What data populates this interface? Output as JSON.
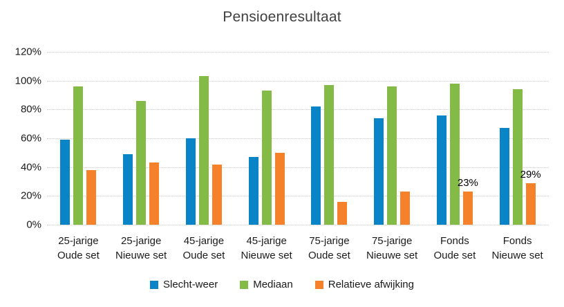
{
  "title": "Pensioenresultaat",
  "colors": {
    "slecht_weer": "#0984c6",
    "mediaan": "#84bb47",
    "relatieve_afwijking": "#f5822a",
    "gridline": "#c9c9c9",
    "title_text": "#3f3f3f",
    "axis_text": "#1a1a1a"
  },
  "chart_data": {
    "type": "bar",
    "title": "Pensioenresultaat",
    "categories": [
      "25-jarige Oude set",
      "25-jarige Nieuwe set",
      "45-jarige Oude set",
      "45-jarige Nieuwe set",
      "75-jarige Oude set",
      "75-jarige Nieuwe set",
      "Fonds Oude set",
      "Fonds Nieuwe set"
    ],
    "category_lines": [
      [
        "25-jarige",
        "Oude set"
      ],
      [
        "25-jarige",
        "Nieuwe set"
      ],
      [
        "45-jarige",
        "Oude set"
      ],
      [
        "45-jarige",
        "Nieuwe set"
      ],
      [
        "75-jarige",
        "Oude set"
      ],
      [
        "75-jarige",
        "Nieuwe set"
      ],
      [
        "Fonds",
        "Oude set"
      ],
      [
        "Fonds",
        "Nieuwe set"
      ]
    ],
    "series": [
      {
        "name": "Slecht-weer",
        "color": "#0984c6",
        "values": [
          59,
          49,
          60,
          47,
          82,
          74,
          76,
          67
        ],
        "labels": [
          null,
          null,
          null,
          null,
          null,
          null,
          null,
          null
        ]
      },
      {
        "name": "Mediaan",
        "color": "#84bb47",
        "values": [
          96,
          86,
          103,
          93,
          97,
          96,
          98,
          94
        ],
        "labels": [
          null,
          null,
          null,
          null,
          null,
          null,
          null,
          null
        ]
      },
      {
        "name": "Relatieve afwijking",
        "color": "#f5822a",
        "values": [
          38,
          43,
          42,
          50,
          16,
          23,
          23,
          29
        ],
        "labels": [
          null,
          null,
          null,
          null,
          null,
          null,
          "23%",
          "29%"
        ]
      }
    ],
    "ylabel": "",
    "xlabel": "",
    "ylim": [
      0,
      120
    ],
    "yticks": [
      "0%",
      "20%",
      "40%",
      "60%",
      "80%",
      "100%",
      "120%"
    ],
    "grid": true,
    "gridline_style": "dotted",
    "legend_position": "bottom"
  }
}
